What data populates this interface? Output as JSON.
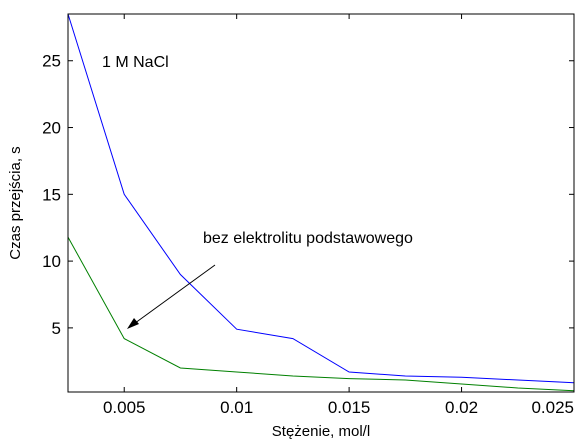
{
  "chart_data": {
    "type": "line",
    "title": "",
    "xlabel": "Stężenie, mol/l",
    "ylabel": "Czas przejścia, s",
    "xlim": [
      0.0025,
      0.025
    ],
    "ylim": [
      0.2,
      28.5
    ],
    "x_ticks": [
      0.005,
      0.01,
      0.015,
      0.02,
      0.025
    ],
    "x_tick_labels": [
      "0.005",
      "0.01",
      "0.015",
      "0.02",
      "0.025"
    ],
    "y_ticks": [
      5,
      10,
      15,
      20,
      25
    ],
    "y_tick_labels": [
      "5",
      "10",
      "15",
      "20",
      "25"
    ],
    "grid": false,
    "series": [
      {
        "color": "#0000ff",
        "x": [
          0.0025,
          0.005,
          0.0075,
          0.01,
          0.0125,
          0.015,
          0.0175,
          0.02,
          0.0225,
          0.025
        ],
        "values": [
          28.5,
          15.0,
          9.0,
          4.9,
          4.2,
          1.7,
          1.4,
          1.3,
          1.1,
          0.9
        ]
      },
      {
        "color": "#008000",
        "x": [
          0.0025,
          0.005,
          0.0075,
          0.01,
          0.0125,
          0.015,
          0.0175,
          0.02,
          0.0225,
          0.025
        ],
        "values": [
          11.8,
          4.2,
          2.0,
          1.7,
          1.4,
          1.2,
          1.1,
          0.8,
          0.5,
          0.3
        ]
      }
    ],
    "annotations": [
      {
        "text": "1 M NaCl"
      },
      {
        "text": "bez elektrolitu podstawowego"
      }
    ]
  }
}
